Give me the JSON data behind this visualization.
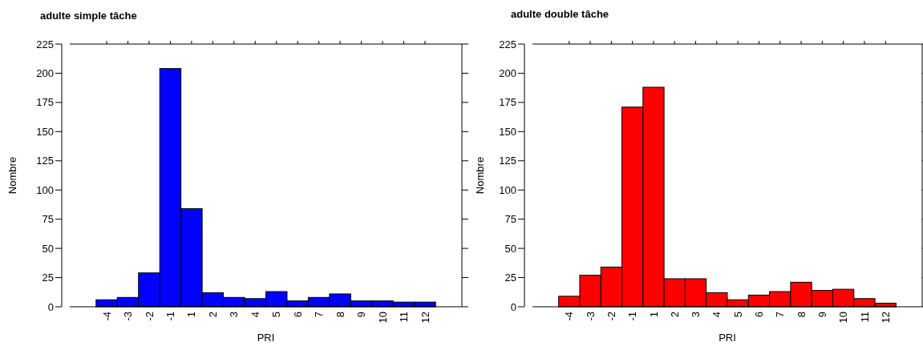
{
  "chart_data": [
    {
      "type": "bar",
      "title": "adulte simple tâche",
      "xlabel": "PRI",
      "ylabel": "Nombre",
      "categories": [
        "-4",
        "-3",
        "-2",
        "-1",
        "1",
        "2",
        "3",
        "4",
        "5",
        "6",
        "7",
        "8",
        "9",
        "10",
        "11",
        "12"
      ],
      "values": [
        6,
        8,
        29,
        204,
        84,
        12,
        8,
        7,
        13,
        5,
        8,
        11,
        5,
        5,
        4,
        4
      ],
      "color": "#0000ff",
      "ylim": [
        0,
        225
      ],
      "yticks": [
        0,
        25,
        50,
        75,
        100,
        125,
        150,
        175,
        200,
        225
      ],
      "grid": false
    },
    {
      "type": "bar",
      "title": "adulte double tâche",
      "xlabel": "PRI",
      "ylabel": "Nombre",
      "categories": [
        "-4",
        "-3",
        "-2",
        "-1",
        "1",
        "2",
        "3",
        "4",
        "5",
        "6",
        "7",
        "8",
        "9",
        "10",
        "11",
        "12"
      ],
      "values": [
        9,
        27,
        34,
        171,
        188,
        24,
        24,
        12,
        6,
        10,
        13,
        21,
        14,
        15,
        7,
        3
      ],
      "color": "#ff0000",
      "ylim": [
        0,
        225
      ],
      "yticks": [
        0,
        25,
        50,
        75,
        100,
        125,
        150,
        175,
        200,
        225
      ],
      "grid": false
    }
  ]
}
